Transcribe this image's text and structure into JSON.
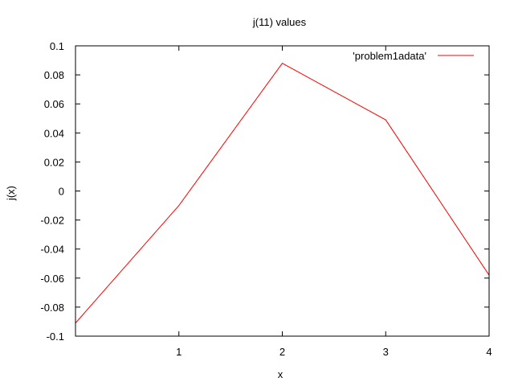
{
  "chart_data": {
    "type": "line",
    "title": "j(11) values",
    "xlabel": "x",
    "ylabel": "j(x)",
    "xlim": [
      0,
      4
    ],
    "ylim": [
      -0.1,
      0.1
    ],
    "x_ticks": [
      1,
      2,
      3,
      4
    ],
    "x_tick_labels": [
      "1",
      "2",
      "3",
      "4"
    ],
    "y_ticks": [
      -0.1,
      -0.08,
      -0.06,
      -0.04,
      -0.02,
      0,
      0.02,
      0.04,
      0.06,
      0.08,
      0.1
    ],
    "y_tick_labels": [
      "-0.1",
      "-0.08",
      "-0.06",
      "-0.04",
      "-0.02",
      "0",
      "0.02",
      "0.04",
      "0.06",
      "0.08",
      "0.1"
    ],
    "grid": false,
    "legend_position": "top-right",
    "series": [
      {
        "name": "'problem1adata'",
        "color": "#ff0000",
        "x": [
          0,
          1,
          2,
          3,
          4
        ],
        "y": [
          -0.091,
          -0.01,
          0.088,
          0.049,
          -0.058
        ]
      }
    ]
  }
}
